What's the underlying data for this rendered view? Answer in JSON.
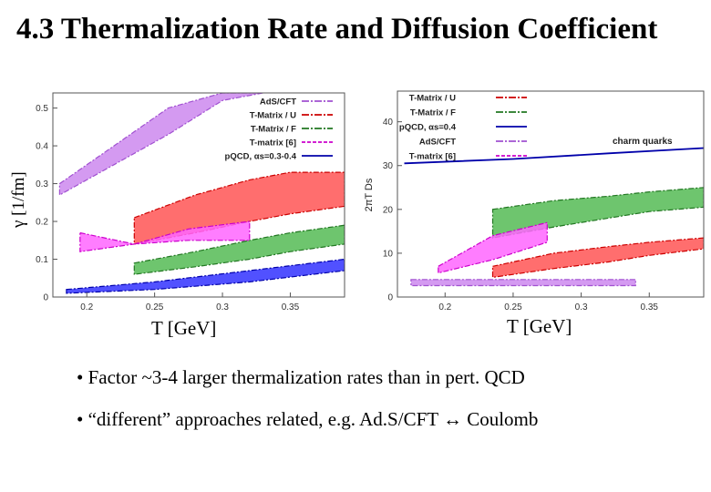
{
  "title": "4.3 Thermalization Rate and Diffusion Coefficient",
  "colors": {
    "ads": "#cc88ee",
    "ads_line": "#a050d0",
    "tmu": "#ff5555",
    "tmu_line": "#cc0000",
    "tmf": "#55bb55",
    "tmf_line": "#227722",
    "tm6": "#ff66ff",
    "tm6_line": "#cc00cc",
    "pqcd": "#3333ff",
    "pqcd_line": "#0000aa"
  },
  "chart_data": [
    {
      "type": "area",
      "ylabel": "γ [1/fm]",
      "xlabel": "T [GeV]",
      "xlim": [
        0.175,
        0.39
      ],
      "ylim": [
        0,
        0.54
      ],
      "xticks": [
        "0.2",
        "0.25",
        "0.3",
        "0.35"
      ],
      "yticks": [
        "0",
        "0.1",
        "0.2",
        "0.3",
        "0.4",
        "0.5"
      ],
      "legend": [
        {
          "label": "AdS/CFT",
          "color": "ads"
        },
        {
          "label": "T-Matrix / U",
          "color": "tmu"
        },
        {
          "label": "T-Matrix / F",
          "color": "tmf"
        },
        {
          "label": "T-matrix [6]",
          "color": "tm6"
        },
        {
          "label": "pQCD, αs=0.3-0.4",
          "color": "pqcd"
        }
      ],
      "series": [
        {
          "name": "AdS/CFT",
          "color": "ads",
          "x": [
            0.18,
            0.22,
            0.26,
            0.3,
            0.33
          ],
          "lower": [
            0.27,
            0.35,
            0.43,
            0.52,
            0.54
          ],
          "upper": [
            0.3,
            0.4,
            0.5,
            0.54,
            0.54
          ]
        },
        {
          "name": "T-Matrix / U",
          "color": "tmu",
          "x": [
            0.235,
            0.28,
            0.32,
            0.35,
            0.39
          ],
          "lower": [
            0.14,
            0.17,
            0.2,
            0.22,
            0.24
          ],
          "upper": [
            0.21,
            0.27,
            0.31,
            0.33,
            0.33
          ]
        },
        {
          "name": "T-Matrix / F",
          "color": "tmf",
          "x": [
            0.235,
            0.28,
            0.32,
            0.35,
            0.39
          ],
          "lower": [
            0.06,
            0.08,
            0.1,
            0.12,
            0.14
          ],
          "upper": [
            0.09,
            0.12,
            0.15,
            0.17,
            0.19
          ]
        },
        {
          "name": "T-matrix [6]",
          "color": "tm6",
          "x": [
            0.195,
            0.235,
            0.275,
            0.32
          ],
          "lower": [
            0.12,
            0.14,
            0.15,
            0.15
          ],
          "upper": [
            0.17,
            0.14,
            0.18,
            0.2
          ]
        },
        {
          "name": "pQCD, αs=0.3-0.4",
          "color": "pqcd",
          "x": [
            0.185,
            0.25,
            0.32,
            0.39
          ],
          "lower": [
            0.01,
            0.02,
            0.04,
            0.07
          ],
          "upper": [
            0.02,
            0.04,
            0.07,
            0.1
          ]
        }
      ]
    },
    {
      "type": "area",
      "ylabel": "2πT Ds",
      "xlabel": "T [GeV]",
      "annotation": "charm quarks",
      "xlim": [
        0.165,
        0.39
      ],
      "ylim": [
        0,
        47
      ],
      "xticks": [
        "0.2",
        "0.25",
        "0.3",
        "0.35"
      ],
      "yticks": [
        "0",
        "10",
        "20",
        "30",
        "40"
      ],
      "legend": [
        {
          "label": "T-Matrix / U",
          "color": "tmu"
        },
        {
          "label": "T-Matrix / F",
          "color": "tmf"
        },
        {
          "label": "pQCD, αs=0.4",
          "color": "pqcd"
        },
        {
          "label": "AdS/CFT",
          "color": "ads"
        },
        {
          "label": "T-matrix [6]",
          "color": "tm6"
        }
      ],
      "series": [
        {
          "name": "T-Matrix / U",
          "color": "tmu",
          "x": [
            0.235,
            0.28,
            0.32,
            0.35,
            0.39
          ],
          "lower": [
            4.5,
            6.5,
            8.0,
            9.5,
            11.0
          ],
          "upper": [
            7.0,
            10.0,
            11.5,
            12.5,
            13.5
          ]
        },
        {
          "name": "T-Matrix / F",
          "color": "tmf",
          "x": [
            0.235,
            0.28,
            0.32,
            0.35,
            0.39
          ],
          "lower": [
            13.5,
            16.0,
            18.0,
            19.5,
            20.5
          ],
          "upper": [
            20.0,
            22.0,
            23.0,
            24.0,
            25.0
          ]
        },
        {
          "name": "T-matrix [6]",
          "color": "tm6",
          "x": [
            0.195,
            0.235,
            0.275
          ],
          "lower": [
            5.5,
            8.5,
            12.5
          ],
          "upper": [
            7.0,
            14.0,
            17.0
          ]
        },
        {
          "name": "AdS/CFT",
          "color": "ads",
          "x": [
            0.175,
            0.34
          ],
          "lower": [
            2.6,
            2.6
          ],
          "upper": [
            4.0,
            4.0
          ]
        }
      ],
      "lines": [
        {
          "name": "pQCD, αs=0.4",
          "color": "pqcd",
          "x": [
            0.17,
            0.25,
            0.32,
            0.39
          ],
          "y": [
            30.5,
            31.5,
            32.8,
            34.0
          ]
        }
      ]
    }
  ],
  "bullets": [
    "• Factor ~3-4 larger thermalization rates than in pert. QCD",
    "• “different” approaches related, e.g.  Ad.S/CFT ↔ Coulomb"
  ]
}
